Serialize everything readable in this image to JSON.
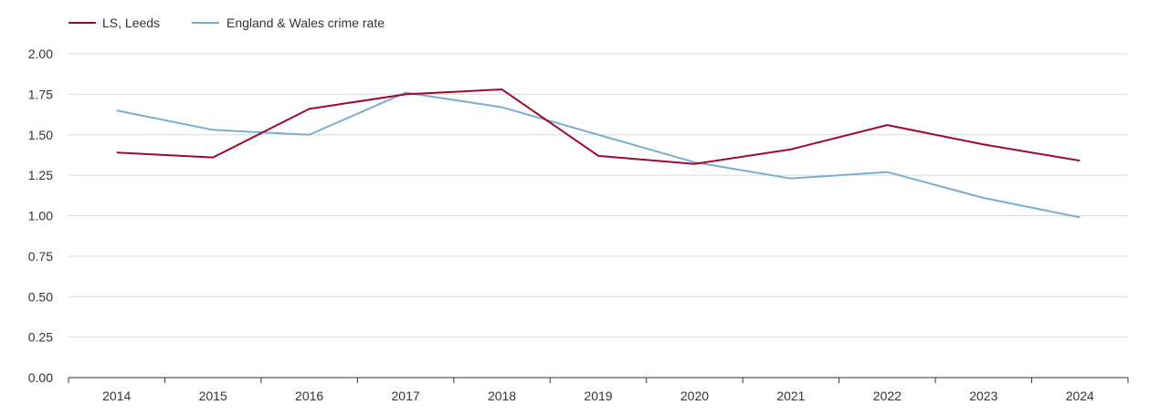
{
  "chart_data": {
    "type": "line",
    "title": "",
    "xlabel": "",
    "ylabel": "",
    "x": [
      "2014",
      "2015",
      "2016",
      "2017",
      "2018",
      "2019",
      "2020",
      "2021",
      "2022",
      "2023",
      "2024"
    ],
    "ylim": [
      0,
      2
    ],
    "yticks": [
      "0.00",
      "0.25",
      "0.50",
      "0.75",
      "1.00",
      "1.25",
      "1.50",
      "1.75",
      "2.00"
    ],
    "grid": true,
    "legend_position": "top-left",
    "series": [
      {
        "name": "LS, Leeds",
        "color": "#9b0a2e",
        "values": [
          1.39,
          1.36,
          1.66,
          1.75,
          1.78,
          1.37,
          1.32,
          1.41,
          1.56,
          1.44,
          1.34
        ]
      },
      {
        "name": "England & Wales crime rate",
        "color": "#7aaed0",
        "values": [
          1.65,
          1.53,
          1.5,
          1.76,
          1.67,
          1.5,
          1.33,
          1.23,
          1.27,
          1.11,
          0.99
        ]
      }
    ]
  }
}
